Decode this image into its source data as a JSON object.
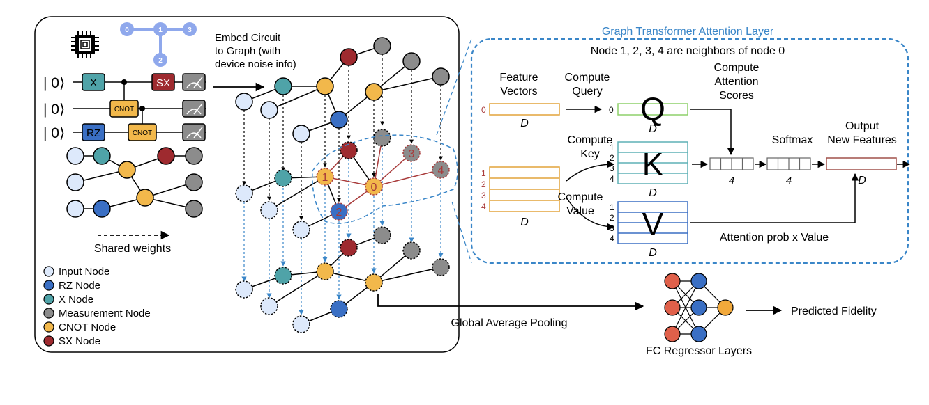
{
  "colors": {
    "input": "#dde9fb",
    "rz": "#3a6fc4",
    "x": "#4fa3a8",
    "measurement": "#8c8c8c",
    "cnot": "#f2b84b",
    "sx": "#9e2a2f",
    "attention_title": "#3a86c8",
    "neighbor_red": "#a83a3a",
    "query_green": "#8ed06a",
    "key_teal": "#5fb0b6",
    "value_blue": "#3a6fc4",
    "feature_orange": "#e2a33a",
    "output_red": "#a0504a",
    "qubit_blue": "#8fa8ec"
  },
  "chip_icon": "processor-chip-icon",
  "topology": {
    "nodes": [
      "0",
      "1",
      "3",
      "2"
    ]
  },
  "circuit": {
    "ket": "| 0⟩",
    "gates": {
      "x": "X",
      "sx": "SX",
      "cnot": "CNOT",
      "rz": "RZ"
    },
    "measure_icon": "measurement-meter-icon"
  },
  "shared_weights": "Shared weights",
  "legend": [
    {
      "label": "Input Node",
      "color_key": "input"
    },
    {
      "label": "RZ Node",
      "color_key": "rz"
    },
    {
      "label": "X Node",
      "color_key": "x"
    },
    {
      "label": "Measurement Node",
      "color_key": "measurement"
    },
    {
      "label": "CNOT Node",
      "color_key": "cnot"
    },
    {
      "label": "SX Node",
      "color_key": "sx"
    }
  ],
  "embed_label": [
    "Embed Circuit",
    "to Graph (with",
    "device noise info)"
  ],
  "graph_nodes": {
    "center": "0",
    "n1": "1",
    "n2": "2",
    "n3": "3",
    "n4": "4"
  },
  "attention": {
    "title": "Graph Transformer Attention Layer",
    "subtitle": "Node 1, 2, 3, 4 are neighbors of node 0",
    "feature_vectors": [
      "Feature",
      "Vectors"
    ],
    "compute_query": [
      "Compute",
      "Query"
    ],
    "compute_key": [
      "Compute",
      "Key"
    ],
    "compute_value": [
      "Compute",
      "Value"
    ],
    "compute_attention": [
      "Compute",
      "Attention",
      "Scores"
    ],
    "softmax": "Softmax",
    "output": [
      "Output",
      "New Features"
    ],
    "q": "Q",
    "k": "K",
    "v": "V",
    "d": "D",
    "four": "4",
    "row0": "0",
    "rows": [
      "1",
      "2",
      "3",
      "4"
    ],
    "attn_prob": "Attention prob x Value"
  },
  "pooling": "Global Average Pooling",
  "fc_label": "FC Regressor Layers",
  "predicted": "Predicted Fidelity"
}
